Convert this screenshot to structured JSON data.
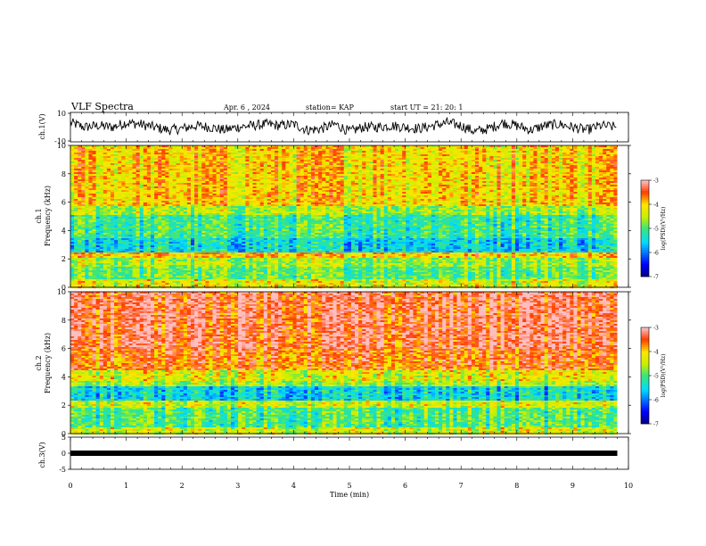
{
  "header": {
    "title": "VLF Spectra",
    "date": "Apr. 6  , 2024",
    "station": "station= KAP",
    "start": "start  UT  =   21: 20: 1"
  },
  "chart_data": [
    {
      "type": "line",
      "panel": "ch1-waveform",
      "ylabel": "ch.1(V)",
      "ylim": [
        -10,
        10
      ],
      "y_ticks": [
        "10",
        "-10"
      ],
      "x": [
        0,
        0.25,
        0.5,
        0.75,
        1,
        1.25,
        1.5,
        1.75,
        2,
        2.25,
        2.5,
        2.75,
        3,
        3.25,
        3.5,
        3.75,
        4,
        4.25,
        4.5,
        4.75,
        5,
        5.25,
        5.5,
        5.75,
        6,
        6.25,
        6.5,
        6.75,
        7,
        7.25,
        7.5,
        7.75,
        8,
        8.25,
        8.5,
        8.75,
        9,
        9.25,
        9.5,
        9.8
      ],
      "values": [
        3,
        0,
        1,
        0,
        3,
        2,
        0,
        -2,
        -1,
        1,
        0,
        -2,
        0,
        1,
        2,
        1,
        2,
        -2,
        -1,
        2,
        -3,
        0,
        0,
        1,
        0,
        -1,
        1,
        3,
        1,
        -3,
        -1,
        3,
        1,
        -2,
        1,
        2,
        0,
        -2,
        1,
        0
      ],
      "color": "#000000"
    },
    {
      "type": "heatmap",
      "panel": "ch1-spectrogram",
      "ylabel": "Frequency (kHz)",
      "channel_label": "ch.1",
      "ylim": [
        0,
        10
      ],
      "y_ticks": [
        "0",
        "2",
        "4",
        "6",
        "8",
        "10"
      ],
      "bands": [
        {
          "from": 0,
          "to": 0.6,
          "level": -4.3
        },
        {
          "from": 0.6,
          "to": 1.5,
          "level": -4.9
        },
        {
          "from": 1.5,
          "to": 2.1,
          "level": -4.6
        },
        {
          "from": 2.1,
          "to": 2.5,
          "level": -3.9
        },
        {
          "from": 2.5,
          "to": 3.4,
          "level": -5.5
        },
        {
          "from": 3.4,
          "to": 3.9,
          "level": -5.1
        },
        {
          "from": 3.9,
          "to": 5.1,
          "level": -5.1
        },
        {
          "from": 5.1,
          "to": 5.7,
          "level": -4.6
        },
        {
          "from": 5.7,
          "to": 10,
          "level": -4.0
        }
      ],
      "colorbar": {
        "label": "log(PSD)(V²/Hz)",
        "range": [
          -7,
          -3
        ],
        "ticks": [
          "-3",
          "-4",
          "-5",
          "-6",
          "-7"
        ]
      }
    },
    {
      "type": "heatmap",
      "panel": "ch2-spectrogram",
      "ylabel": "Frequency (kHz)",
      "channel_label": "ch.2",
      "ylim": [
        0,
        10
      ],
      "y_ticks": [
        "0",
        "2",
        "4",
        "6",
        "8",
        "10"
      ],
      "bands": [
        {
          "from": 0,
          "to": 0.5,
          "level": -4.4
        },
        {
          "from": 0.5,
          "to": 1.8,
          "level": -5.0
        },
        {
          "from": 1.8,
          "to": 2.3,
          "level": -4.4
        },
        {
          "from": 2.3,
          "to": 3.3,
          "level": -5.5
        },
        {
          "from": 3.3,
          "to": 3.7,
          "level": -4.6
        },
        {
          "from": 3.7,
          "to": 4.5,
          "level": -4.3
        },
        {
          "from": 4.5,
          "to": 6.0,
          "level": -3.6
        },
        {
          "from": 6.0,
          "to": 10,
          "level": -3.3
        }
      ],
      "colorbar": {
        "label": "log(PSD)(V²/Hz)",
        "range": [
          -7,
          -3
        ],
        "ticks": [
          "-3",
          "-4",
          "-5",
          "-6",
          "-7"
        ]
      }
    },
    {
      "type": "line",
      "panel": "ch3-waveform",
      "ylabel": "ch.3(V)",
      "ylim": [
        -5,
        5
      ],
      "y_ticks": [
        "5",
        "0",
        "-5"
      ],
      "x": [
        0,
        9.8
      ],
      "values": [
        0,
        0
      ],
      "color": "#000000"
    }
  ],
  "x_axis": {
    "xlabel": "Time  (min)",
    "xlim": [
      0,
      10
    ],
    "ticks": [
      "0",
      "1",
      "2",
      "3",
      "4",
      "5",
      "6",
      "7",
      "8",
      "9",
      "10"
    ]
  }
}
